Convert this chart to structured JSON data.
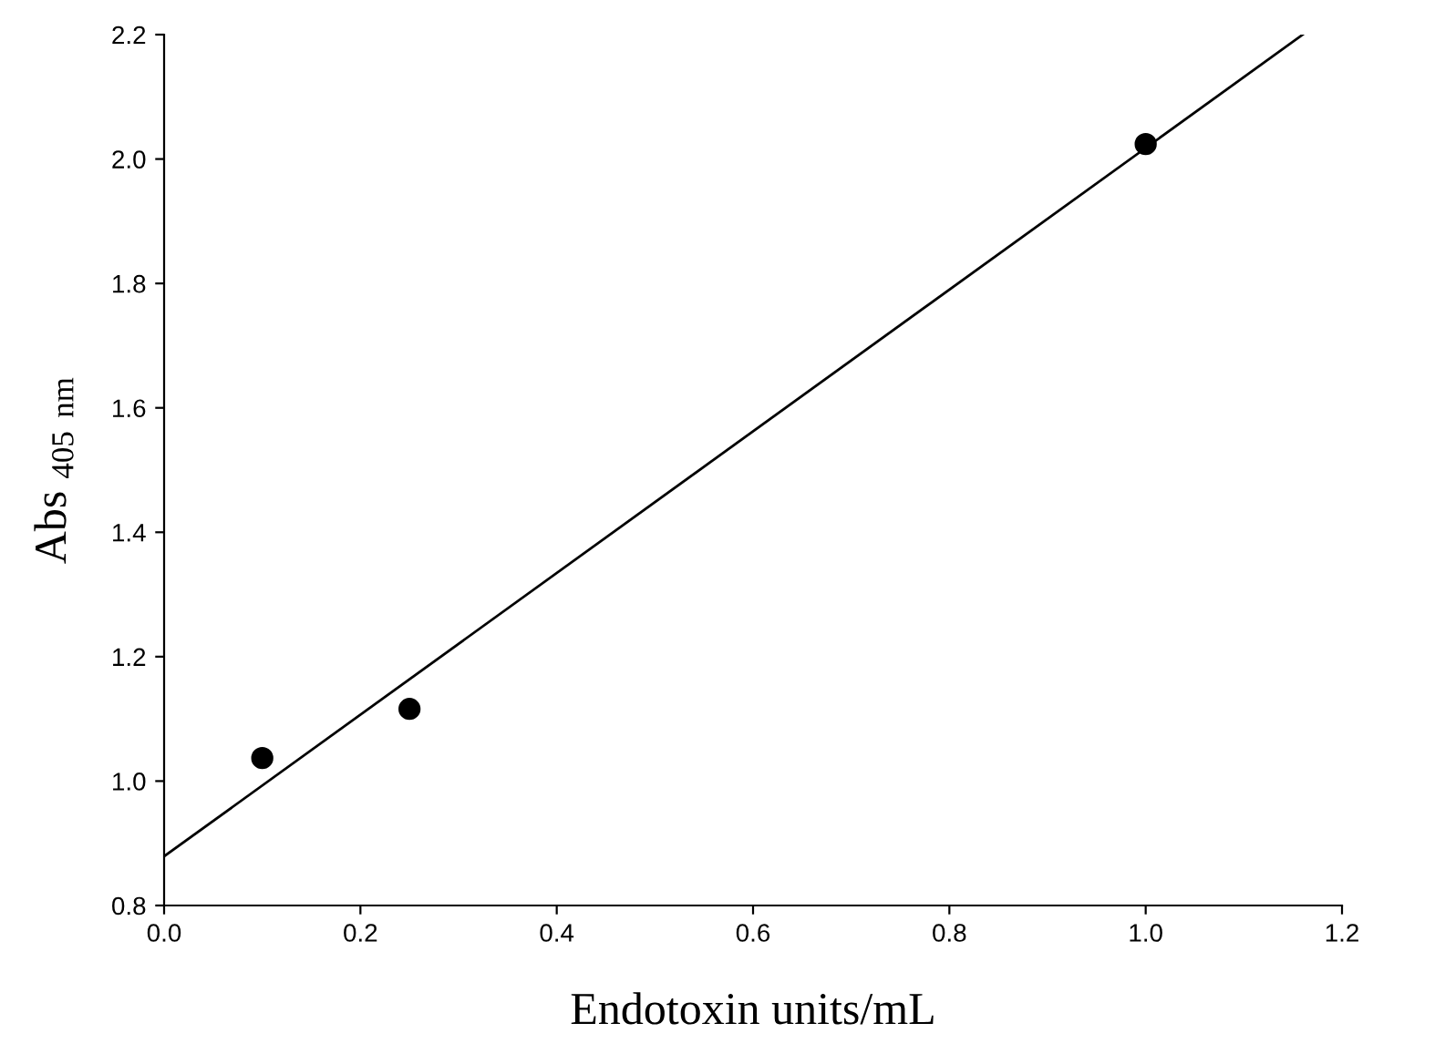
{
  "chart_data": {
    "type": "scatter",
    "xlabel": "Endotoxin units/mL",
    "ylabel": "Abs $_{405 nm}$",
    "series": [
      {
        "x": [
          0.1,
          0.25,
          1.0
        ],
        "values": [
          1.037,
          1.116,
          2.024
        ],
        "color": "#000000",
        "marker": "circle"
      },
      {
        "type": "line",
        "x": [
          0.0,
          1.16
        ],
        "values": [
          0.879,
          2.2
        ],
        "color": "#000000",
        "marker": "none",
        "line_style": "solid"
      }
    ],
    "xlim": [
      0.0,
      1.2
    ],
    "ylim": [
      0.8,
      2.2
    ],
    "xticks": [
      {
        "value": 0.0,
        "label": "0.0"
      },
      0.2,
      0.4,
      0.6,
      0.8,
      {
        "value": 1.0,
        "label": "1.0"
      },
      1.2
    ],
    "yticks": [
      0.8,
      {
        "value": 1.0,
        "label": "1.0"
      },
      1.2,
      1.4,
      1.6,
      1.8,
      {
        "value": 2.0,
        "label": "2.0"
      },
      2.2
    ],
    "grid": false,
    "legend": false
  }
}
